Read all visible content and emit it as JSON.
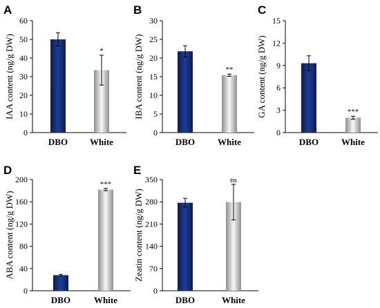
{
  "colors": {
    "dbo_dark": "#0d1c4d",
    "dbo_mid": "#1f3e99",
    "white_dark": "#8f8f8f",
    "white_light": "#f7f7f7",
    "axis": "#000000"
  },
  "chart_data": [
    {
      "type": "bar",
      "panel": "A",
      "ylabel": "IAA content (ng/g DW)",
      "categories": [
        "DBO",
        "White"
      ],
      "values": [
        50,
        33.5
      ],
      "errors": [
        3.5,
        8
      ],
      "significance": [
        "",
        "*"
      ],
      "ylim": [
        0,
        60
      ],
      "yticks": [
        0,
        10,
        20,
        30,
        40,
        50,
        60
      ],
      "grid": false
    },
    {
      "type": "bar",
      "panel": "B",
      "ylabel": "IBA content (ng/g DW)",
      "categories": [
        "DBO",
        "White"
      ],
      "values": [
        21.8,
        15.4
      ],
      "errors": [
        1.5,
        0.3
      ],
      "significance": [
        "",
        "**"
      ],
      "ylim": [
        0,
        30
      ],
      "yticks": [
        0,
        5,
        10,
        15,
        20,
        25,
        30
      ],
      "grid": false
    },
    {
      "type": "bar",
      "panel": "C",
      "ylabel": "GA content (ng/g DW)",
      "categories": [
        "DBO",
        "White"
      ],
      "values": [
        9.3,
        2.0
      ],
      "errors": [
        1.0,
        0.2
      ],
      "significance": [
        "",
        "***"
      ],
      "ylim": [
        0,
        15
      ],
      "yticks": [
        0,
        3,
        6,
        9,
        12,
        15
      ],
      "grid": false
    },
    {
      "type": "bar",
      "panel": "D",
      "ylabel": "ABA content (ng/g DW)",
      "categories": [
        "DBO",
        "White"
      ],
      "values": [
        28,
        182
      ],
      "errors": [
        1.5,
        2
      ],
      "significance": [
        "",
        "***"
      ],
      "ylim": [
        0,
        200
      ],
      "yticks": [
        0,
        40,
        80,
        120,
        160,
        200
      ],
      "grid": false
    },
    {
      "type": "bar",
      "panel": "E",
      "ylabel": "Zeatin content (ng/g DW)",
      "categories": [
        "DBO",
        "White"
      ],
      "values": [
        277,
        279
      ],
      "errors": [
        14,
        56
      ],
      "significance": [
        "",
        "ns"
      ],
      "ylim": [
        0,
        350
      ],
      "yticks": [
        0,
        70,
        140,
        210,
        280,
        350
      ],
      "grid": false
    }
  ]
}
